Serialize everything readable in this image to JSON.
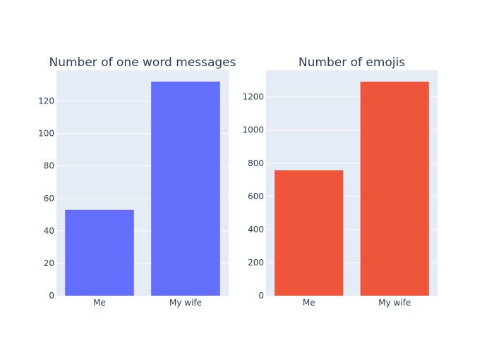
{
  "chart_data": [
    {
      "type": "bar",
      "title": "Number of one word messages",
      "categories": [
        "Me",
        "My wife"
      ],
      "values": [
        53,
        132
      ],
      "ylim": [
        0,
        138.9
      ],
      "yticks": [
        0,
        20,
        40,
        60,
        80,
        100,
        120
      ],
      "color": "#636efa",
      "grid": true
    },
    {
      "type": "bar",
      "title": "Number of emojis",
      "categories": [
        "Me",
        "My wife"
      ],
      "values": [
        757,
        1292
      ],
      "ylim": [
        0,
        1360
      ],
      "yticks": [
        0,
        200,
        400,
        600,
        800,
        1000,
        1200
      ],
      "color": "#ef553b",
      "grid": true
    }
  ],
  "colors": {
    "plot_background": "#e5ecf6",
    "text": "#2a3f5f",
    "grid": "#ffffff"
  }
}
